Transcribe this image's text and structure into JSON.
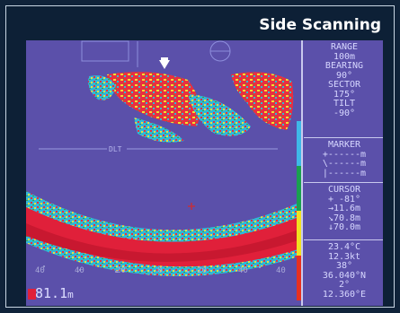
{
  "title": "Side Scanning",
  "panel": {
    "range_label": "RANGE",
    "range_value": "100m",
    "bearing_label": "BEARING",
    "bearing_value": "90°",
    "sector_label": "SECTOR",
    "sector_value": "175°",
    "tilt_label": "TILT",
    "tilt_value": "-90°",
    "marker_label": "MARKER",
    "marker_rows": [
      "+------m",
      "\\------m",
      "|------m"
    ],
    "cursor_label": "CURSOR",
    "cursor_rows": [
      "+ -81°",
      "→11.6m",
      "↘70.8m",
      "↓70.0m"
    ],
    "temp": "23.4°C",
    "speed": "12.3kt",
    "heading": "38°",
    "lat": "36.040°N",
    "lat_min": "2°",
    "lon": "12.360°E"
  },
  "screen": {
    "depth_value": "81.1",
    "depth_unit": "m",
    "dlt_label": "DLT",
    "scale_colors": [
      "#3fb8e8",
      "#3fb8e8",
      "#1aa050",
      "#1aa050",
      "#f0e020",
      "#f0e020",
      "#e83020",
      "#e83020"
    ],
    "tick_labels": [
      "40",
      "40",
      "20",
      "0",
      "20",
      "40",
      "40"
    ]
  }
}
